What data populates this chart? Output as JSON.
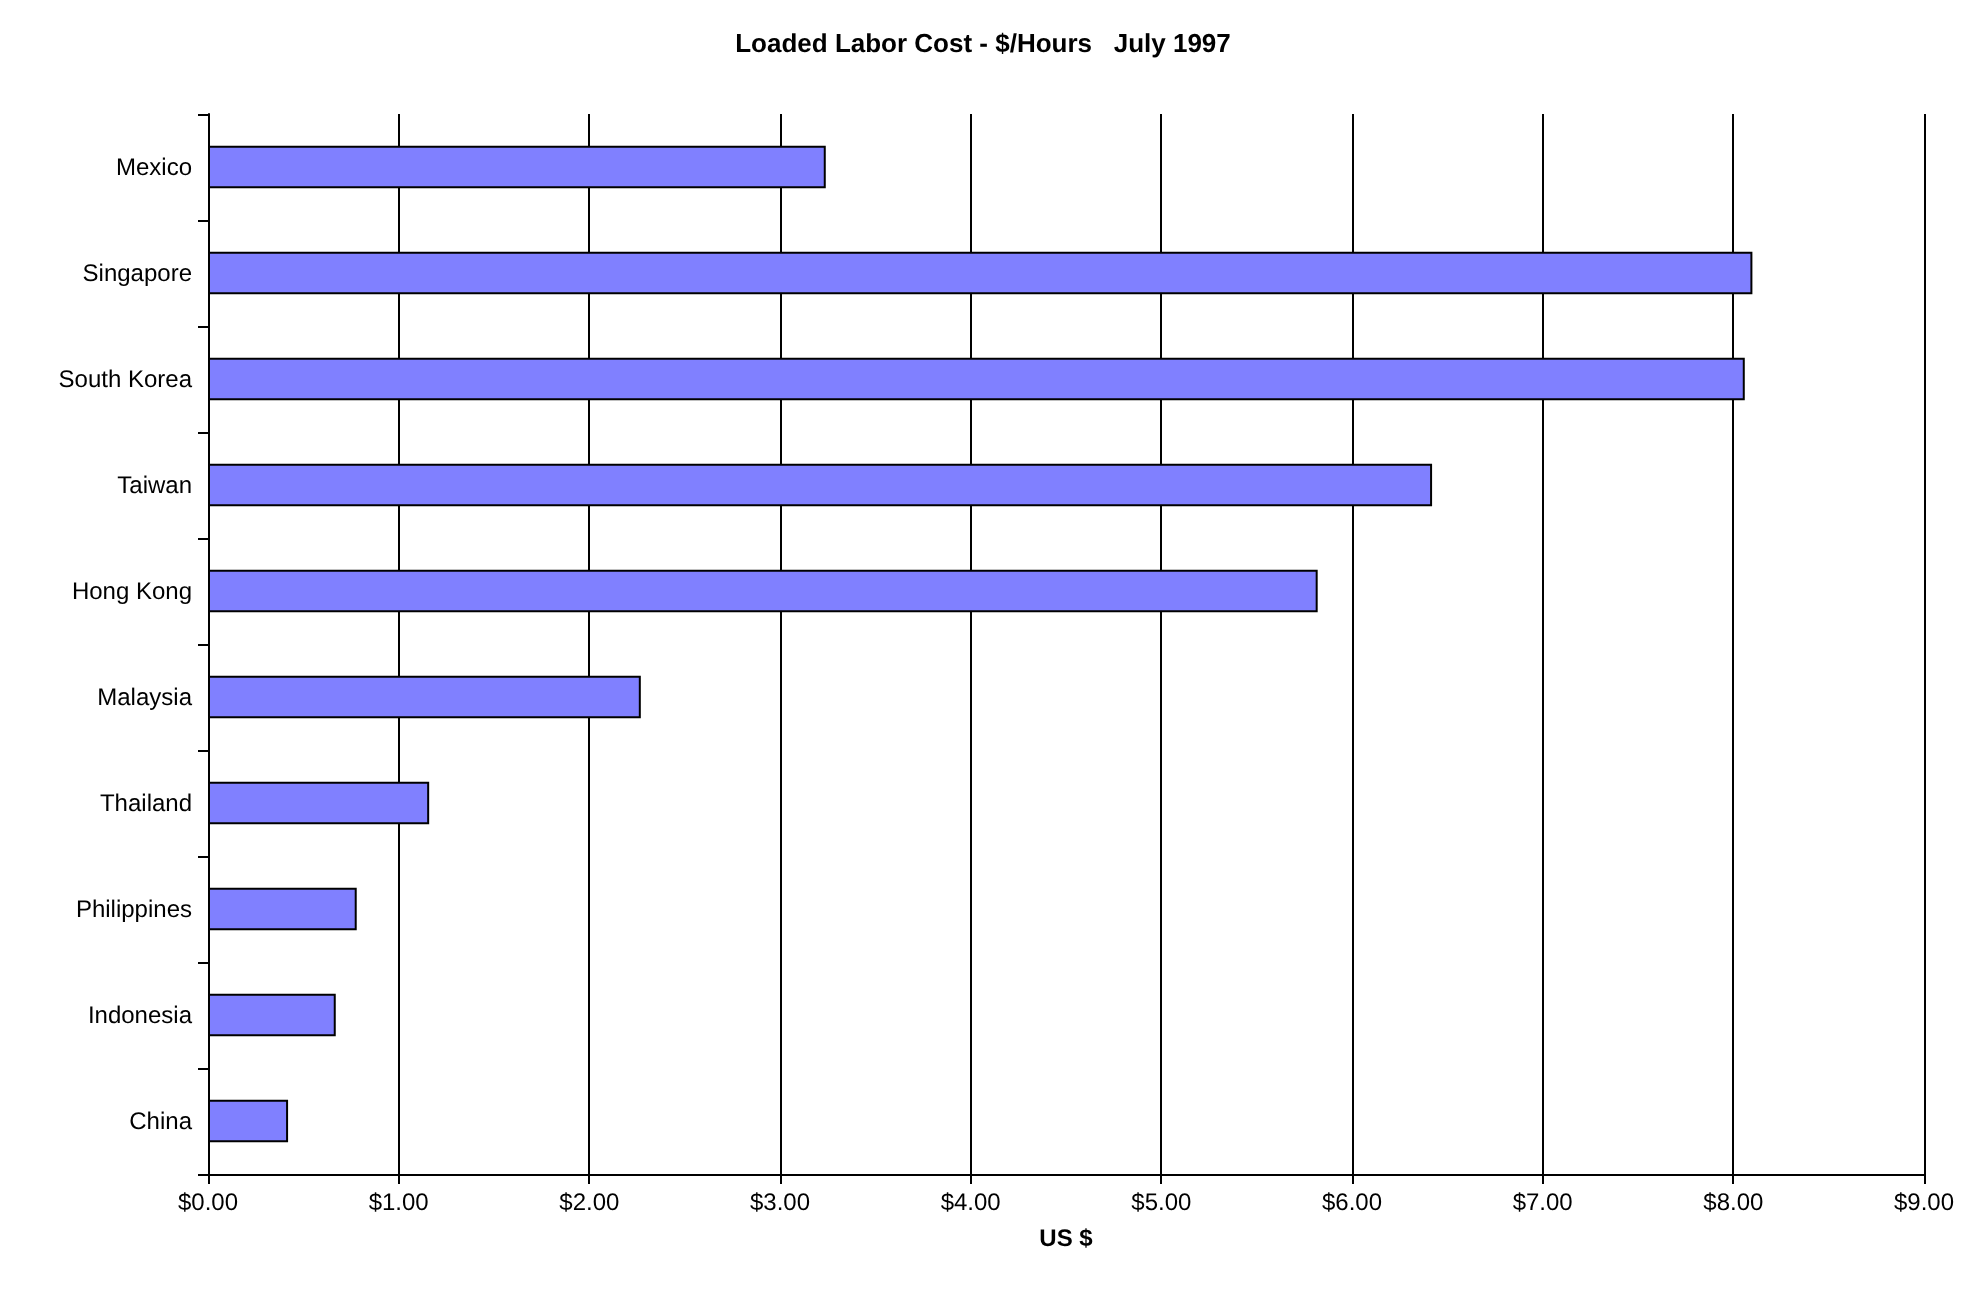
{
  "chart_data": {
    "type": "bar",
    "orientation": "horizontal",
    "title": "Loaded Labor Cost - $/Hours   July 1997",
    "xlabel": "US $",
    "categories": [
      "Mexico",
      "Singapore",
      "South Korea",
      "Taiwan",
      "Hong Kong",
      "Malaysia",
      "Thailand",
      "Philippines",
      "Indonesia",
      "China"
    ],
    "values": [
      3.24,
      8.1,
      8.06,
      6.42,
      5.82,
      2.27,
      1.16,
      0.78,
      0.67,
      0.42
    ],
    "color": "#8080ff",
    "xlim": [
      0,
      9
    ],
    "xticks": [
      {
        "value": 0,
        "label": "$0.00"
      },
      {
        "value": 1,
        "label": "$1.00"
      },
      {
        "value": 2,
        "label": "$2.00"
      },
      {
        "value": 3,
        "label": "$3.00"
      },
      {
        "value": 4,
        "label": "$4.00"
      },
      {
        "value": 5,
        "label": "$5.00"
      },
      {
        "value": 6,
        "label": "$6.00"
      },
      {
        "value": 7,
        "label": "$7.00"
      },
      {
        "value": 8,
        "label": "$8.00"
      },
      {
        "value": 9,
        "label": "$9.00"
      }
    ],
    "grid": "x"
  }
}
